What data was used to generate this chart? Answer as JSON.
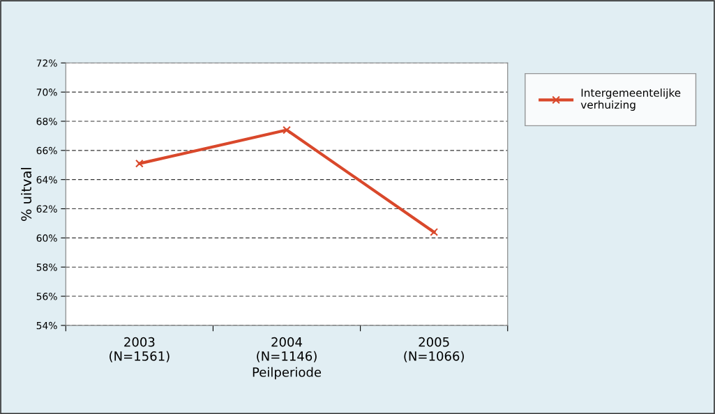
{
  "chart_data": {
    "type": "line",
    "xlabel": "Peilperiode",
    "ylabel": "% uitval",
    "categories": [
      "2003\n(N=1561)",
      "2004\n(N=1146)",
      "2005\n(N=1066)"
    ],
    "series": [
      {
        "name": "Intergemeentelijke\nverhuizing",
        "color": "#d9482b",
        "values": [
          65.1,
          67.4,
          60.4
        ]
      }
    ],
    "ylim": [
      54,
      72
    ],
    "yticks": [
      {
        "value": 54,
        "label": "54%"
      },
      {
        "value": 56,
        "label": "56%"
      },
      {
        "value": 58,
        "label": "58%"
      },
      {
        "value": 60,
        "label": "60%"
      },
      {
        "value": 62,
        "label": "62%"
      },
      {
        "value": 64,
        "label": "64%"
      },
      {
        "value": 66,
        "label": "66%"
      },
      {
        "value": 68,
        "label": "68%"
      },
      {
        "value": 70,
        "label": "70%"
      },
      {
        "value": 72,
        "label": "72%"
      }
    ],
    "grid": "y",
    "legend": "right",
    "marker": "cross",
    "line_style": "solid"
  }
}
